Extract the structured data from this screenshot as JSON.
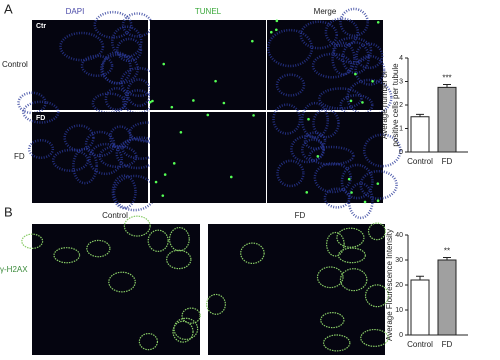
{
  "figure": {
    "panel_a": {
      "label": "A",
      "columns": [
        "DAPI",
        "TUNEL",
        "Merge"
      ],
      "rows": [
        "Control",
        "FD"
      ],
      "insets": [
        "Ctr",
        "FD"
      ]
    },
    "panel_b": {
      "label": "B",
      "columns": [
        "Control",
        "FD"
      ],
      "row": "γ-H2AX"
    }
  },
  "chart_data": [
    {
      "type": "bar",
      "ylabel": [
        "Average number of",
        "positive cells per tubule"
      ],
      "categories": [
        "Control",
        "FD"
      ],
      "values": [
        1.5,
        2.75
      ],
      "errors": [
        0.1,
        0.12
      ],
      "colors": [
        "#ffffff",
        "#a0a0a0"
      ],
      "ylim": [
        0,
        4
      ],
      "yticks": [
        0,
        1,
        2,
        3,
        4
      ],
      "annotations": [
        {
          "text": "***",
          "category": "FD"
        }
      ]
    },
    {
      "type": "bar",
      "ylabel": [
        "Average Flourescence Intensity"
      ],
      "categories": [
        "Control",
        "FD"
      ],
      "values": [
        22,
        30
      ],
      "errors": [
        1.5,
        1
      ],
      "colors": [
        "#ffffff",
        "#a0a0a0"
      ],
      "ylim": [
        0,
        40
      ],
      "yticks": [
        0,
        10,
        20,
        30,
        40
      ],
      "annotations": [
        {
          "text": "**",
          "category": "FD"
        }
      ]
    }
  ]
}
